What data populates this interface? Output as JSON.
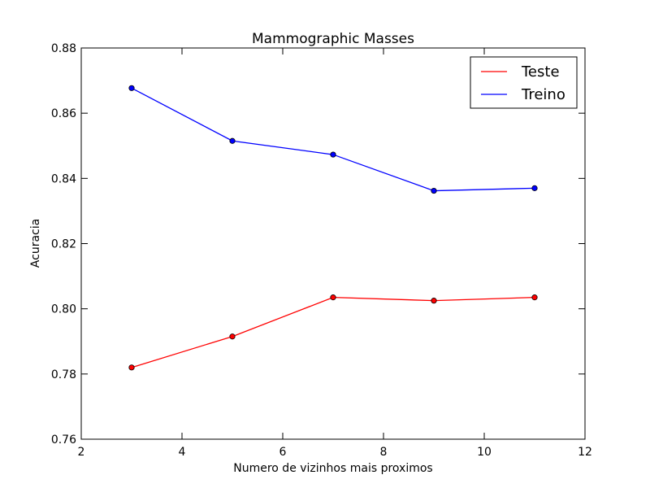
{
  "chart_data": {
    "type": "line",
    "title": "Mammographic Masses",
    "xlabel": "Numero de vizinhos mais proximos",
    "ylabel": "Acuracia",
    "xlim": [
      2,
      12
    ],
    "ylim": [
      0.76,
      0.88
    ],
    "xticks": [
      2,
      4,
      6,
      8,
      10,
      12
    ],
    "xtick_labels": [
      "2",
      "4",
      "6",
      "8",
      "10",
      "12"
    ],
    "yticks": [
      0.76,
      0.78,
      0.8,
      0.82,
      0.84,
      0.86,
      0.88
    ],
    "ytick_labels": [
      "0.76",
      "0.78",
      "0.80",
      "0.82",
      "0.84",
      "0.86",
      "0.88"
    ],
    "grid": false,
    "legend_position": "top-right",
    "x": [
      3,
      5,
      7,
      9,
      11
    ],
    "series": [
      {
        "name": "Teste",
        "color": "#ff0000",
        "values": [
          0.782,
          0.7915,
          0.8035,
          0.8025,
          0.8035
        ]
      },
      {
        "name": "Treino",
        "color": "#0000ff",
        "values": [
          0.8677,
          0.8515,
          0.8473,
          0.8362,
          0.837
        ]
      }
    ]
  }
}
